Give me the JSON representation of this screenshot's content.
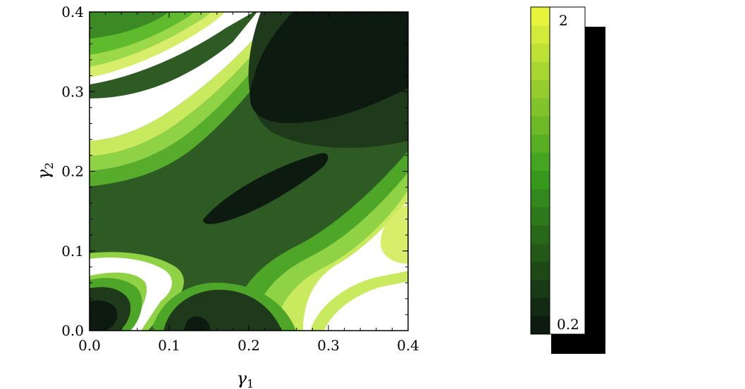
{
  "chart_data": {
    "type": "contour",
    "title": "",
    "xlabel": "γ",
    "xlabel_sub": "1",
    "ylabel": "γ",
    "ylabel_sub": "2",
    "xlim": [
      0.0,
      0.4
    ],
    "ylim": [
      0.0,
      0.4
    ],
    "x_ticks": [
      "0.0",
      "0.1",
      "0.2",
      "0.3",
      "0.4"
    ],
    "y_ticks": [
      "0.0",
      "0.1",
      "0.2",
      "0.3",
      "0.4"
    ],
    "colorbar": {
      "min_label": "0.2",
      "max_label": "2",
      "range": [
        0.2,
        2.0
      ],
      "levels": 18,
      "colors": {
        "low": "#0d1a10",
        "mid": "#3aa01f",
        "high": "#e6f53c",
        "above": "#ffffff"
      }
    },
    "regions": [
      {
        "name": "upper-right-minimum",
        "level": 0.2
      },
      {
        "name": "central-valley-minimum",
        "level": 0.2
      },
      {
        "name": "lower-left-minimum",
        "level": 0.2
      },
      {
        "name": "bottom-center-minimum",
        "level": 0.2
      },
      {
        "name": "upper-left-ridge",
        "level": 2.0
      },
      {
        "name": "lower-right-ridge",
        "level": 2.0
      },
      {
        "name": "right-edge-ridge",
        "level": 2.0
      }
    ]
  }
}
